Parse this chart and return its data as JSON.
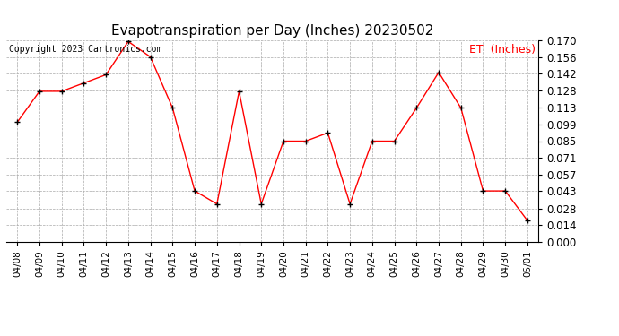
{
  "title": "Evapotranspiration per Day (Inches) 20230502",
  "copyright": "Copyright 2023 Cartronics.com",
  "legend_label": "ET  (Inches)",
  "x_labels": [
    "04/08",
    "04/09",
    "04/10",
    "04/11",
    "04/12",
    "04/13",
    "04/14",
    "04/15",
    "04/16",
    "04/17",
    "04/18",
    "04/19",
    "04/20",
    "04/21",
    "04/22",
    "04/23",
    "04/24",
    "04/25",
    "04/26",
    "04/27",
    "04/28",
    "04/29",
    "04/30",
    "05/01"
  ],
  "y_values": [
    0.101,
    0.127,
    0.127,
    0.134,
    0.141,
    0.169,
    0.156,
    0.113,
    0.043,
    0.032,
    0.127,
    0.032,
    0.085,
    0.085,
    0.092,
    0.032,
    0.085,
    0.085,
    0.113,
    0.143,
    0.113,
    0.043,
    0.043,
    0.018
  ],
  "y_ticks": [
    0.0,
    0.014,
    0.028,
    0.043,
    0.057,
    0.071,
    0.085,
    0.099,
    0.113,
    0.128,
    0.142,
    0.156,
    0.17
  ],
  "ylim": [
    0.0,
    0.17
  ],
  "line_color": "red",
  "marker_color": "black",
  "marker": "+",
  "grid_color": "#aaaaaa",
  "bg_color": "#ffffff",
  "title_fontsize": 11,
  "copyright_fontsize": 7,
  "legend_color": "red",
  "legend_fontsize": 9,
  "tick_fontsize": 7.5,
  "ytick_fontsize": 8.5
}
